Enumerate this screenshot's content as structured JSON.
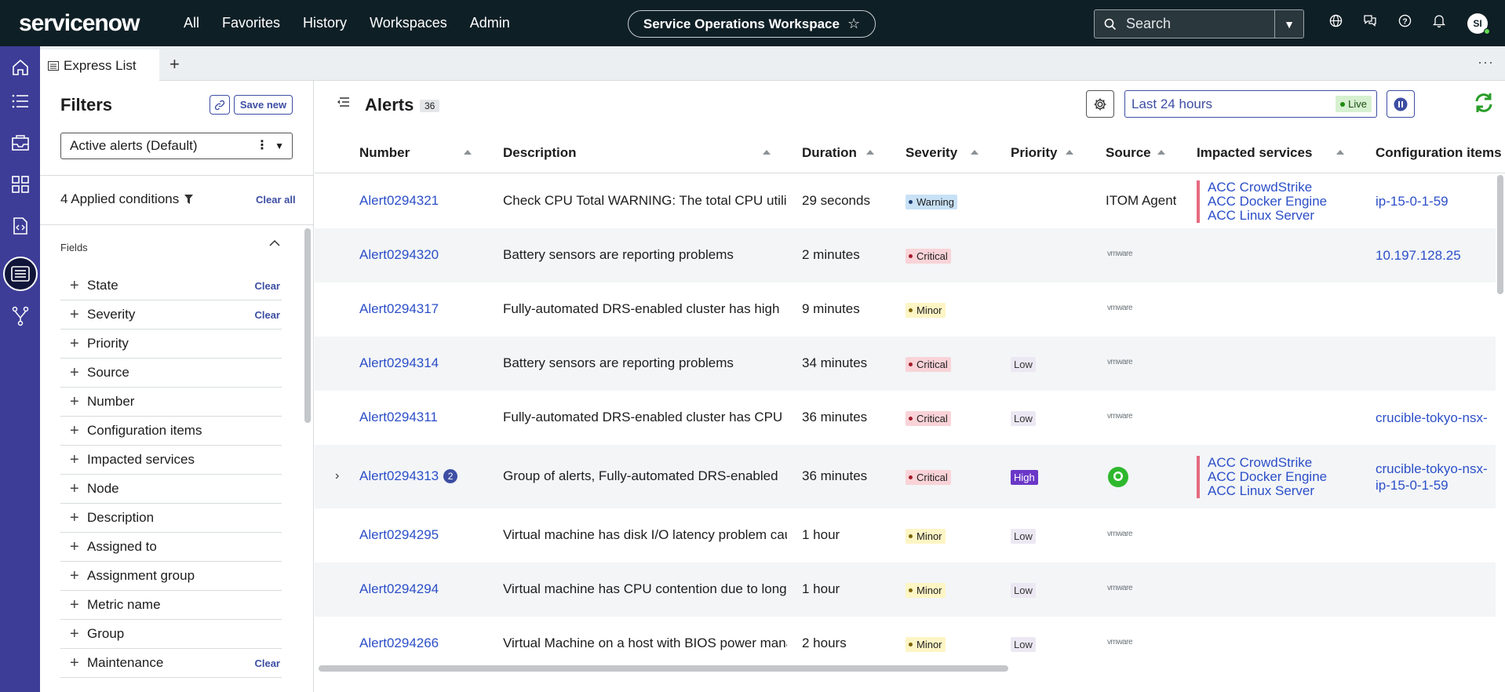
{
  "nav": {
    "logo": "servicenow",
    "links": [
      "All",
      "Favorites",
      "History",
      "Workspaces",
      "Admin"
    ],
    "workspace": "Service Operations Workspace",
    "search_placeholder": "Search",
    "avatar": "SI"
  },
  "tab": {
    "label": "Express List"
  },
  "filters": {
    "title": "Filters",
    "save_new": "Save new",
    "selected": "Active alerts (Default)",
    "applied": "4 Applied conditions",
    "clear_all": "Clear all",
    "fields_label": "Fields",
    "items": [
      {
        "name": "State",
        "clear": "Clear"
      },
      {
        "name": "Severity",
        "clear": "Clear"
      },
      {
        "name": "Priority",
        "clear": ""
      },
      {
        "name": "Source",
        "clear": ""
      },
      {
        "name": "Number",
        "clear": ""
      },
      {
        "name": "Configuration items",
        "clear": ""
      },
      {
        "name": "Impacted services",
        "clear": ""
      },
      {
        "name": "Node",
        "clear": ""
      },
      {
        "name": "Description",
        "clear": ""
      },
      {
        "name": "Assigned to",
        "clear": ""
      },
      {
        "name": "Assignment group",
        "clear": ""
      },
      {
        "name": "Metric name",
        "clear": ""
      },
      {
        "name": "Group",
        "clear": ""
      },
      {
        "name": "Maintenance",
        "clear": "Clear"
      }
    ]
  },
  "main": {
    "title": "Alerts",
    "count": "36",
    "time_range": "Last 24 hours",
    "live": "Live",
    "columns": [
      "Number",
      "Description",
      "Duration",
      "Severity",
      "Priority",
      "Source",
      "Impacted services",
      "Configuration items"
    ]
  },
  "rows": [
    {
      "number": "Alert0294321",
      "badge": "",
      "description": "Check CPU Total WARNING: The total CPU utilization",
      "duration": "29 seconds",
      "severity": "Warning",
      "priority": "",
      "source": "ITOM Agent",
      "source_type": "text",
      "services": [
        "ACC CrowdStrike",
        "ACC Docker Engine",
        "ACC Linux Server"
      ],
      "config": [
        "ip-15-0-1-59"
      ]
    },
    {
      "number": "Alert0294320",
      "badge": "",
      "description": "Battery sensors are reporting problems",
      "duration": "2 minutes",
      "severity": "Critical",
      "priority": "",
      "source": "vmware",
      "source_type": "vmw",
      "services": [],
      "config": [
        "10.197.128.25"
      ]
    },
    {
      "number": "Alert0294317",
      "badge": "",
      "description": "Fully-automated DRS-enabled cluster has high",
      "duration": "9 minutes",
      "severity": "Minor",
      "priority": "",
      "source": "vmware",
      "source_type": "vmw",
      "services": [],
      "config": []
    },
    {
      "number": "Alert0294314",
      "badge": "",
      "description": "Battery sensors are reporting problems",
      "duration": "34 minutes",
      "severity": "Critical",
      "priority": "Low",
      "source": "vmware",
      "source_type": "vmw",
      "services": [],
      "config": []
    },
    {
      "number": "Alert0294311",
      "badge": "",
      "description": "Fully-automated DRS-enabled cluster has CPU",
      "duration": "36 minutes",
      "severity": "Critical",
      "priority": "Low",
      "source": "vmware",
      "source_type": "vmw",
      "services": [],
      "config": [
        "crucible-tokyo-nsx-"
      ]
    },
    {
      "number": "Alert0294313",
      "badge": "2",
      "description": "Group of alerts, Fully-automated DRS-enabled",
      "duration": "36 minutes",
      "severity": "Critical",
      "priority": "High",
      "source": "",
      "source_type": "logo",
      "services": [
        "ACC CrowdStrike",
        "ACC Docker Engine",
        "ACC Linux Server"
      ],
      "config": [
        "crucible-tokyo-nsx-",
        "ip-15-0-1-59"
      ]
    },
    {
      "number": "Alert0294295",
      "badge": "",
      "description": "Virtual machine has disk I/O latency problem caused",
      "duration": "1 hour",
      "severity": "Minor",
      "priority": "Low",
      "source": "vmware",
      "source_type": "vmw",
      "services": [],
      "config": []
    },
    {
      "number": "Alert0294294",
      "badge": "",
      "description": "Virtual machine has CPU contention due to long",
      "duration": "1 hour",
      "severity": "Minor",
      "priority": "Low",
      "source": "vmware",
      "source_type": "vmw",
      "services": [],
      "config": []
    },
    {
      "number": "Alert0294266",
      "badge": "",
      "description": "Virtual Machine on a host with BIOS power management",
      "duration": "2 hours",
      "severity": "Minor",
      "priority": "Low",
      "source": "vmware",
      "source_type": "vmw",
      "services": [],
      "config": []
    }
  ]
}
